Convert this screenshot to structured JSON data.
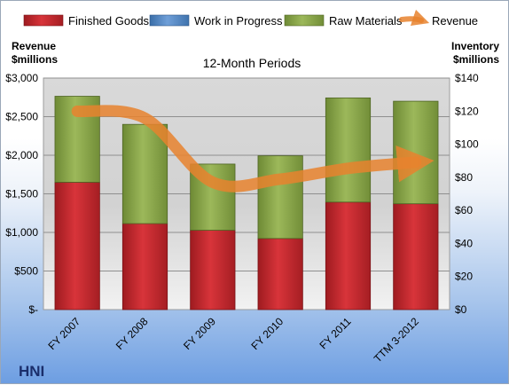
{
  "chart_data": {
    "type": "bar",
    "title": "12-Month Periods",
    "brand": "HNI",
    "y_left_label_line1": "Revenue",
    "y_left_label_line2": "$millions",
    "y_right_label_line1": "Inventory",
    "y_right_label_line2": "$millions",
    "categories": [
      "FY 2007",
      "FY 2008",
      "FY 2009",
      "FY 2010",
      "FY 2011",
      "TTM 3-2012"
    ],
    "y_left": {
      "min": 0,
      "max": 3000,
      "ticks": [
        "$-",
        "$500",
        "$1,000",
        "$1,500",
        "$2,000",
        "$2,500",
        "$3,000"
      ]
    },
    "y_right": {
      "min": 0,
      "max": 140,
      "ticks": [
        "$0",
        "$20",
        "$40",
        "$60",
        "$80",
        "$100",
        "$120",
        "$140"
      ]
    },
    "series": [
      {
        "name": "Finished Goods",
        "type": "bar",
        "axis": "right",
        "color": "#c0282e",
        "values": [
          77,
          52,
          48,
          43,
          65,
          64
        ]
      },
      {
        "name": "Work in Progress",
        "type": "bar",
        "axis": "right",
        "color": "#4f81bd",
        "values": [
          0,
          0,
          0,
          0,
          0,
          0
        ]
      },
      {
        "name": "Raw Materials",
        "type": "bar",
        "axis": "right",
        "color": "#8aa34a",
        "values": [
          52,
          60,
          40,
          50,
          63,
          62
        ]
      },
      {
        "name": "Revenue",
        "type": "line",
        "axis": "left",
        "color": "#e8822e",
        "values": [
          2570,
          2480,
          1650,
          1690,
          1830,
          1910
        ]
      }
    ],
    "legend_position": "top",
    "grid": true
  }
}
